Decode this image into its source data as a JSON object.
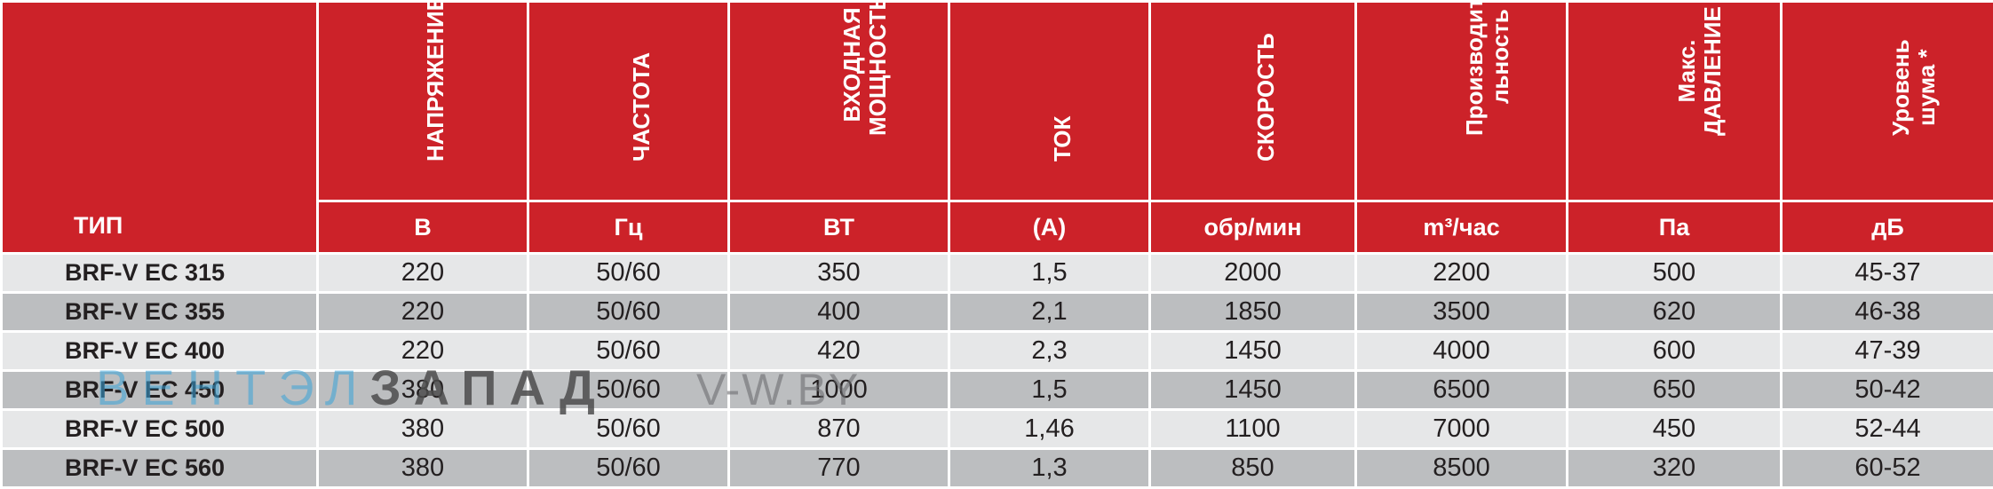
{
  "header": {
    "type_label": "ТИП",
    "columns": [
      {
        "title": "НАПРЯЖЕНИЕ",
        "unit": "В"
      },
      {
        "title": "ЧАСТОТА",
        "unit": "Гц"
      },
      {
        "title": "ВХОДНАЯ\nМОЩНОСТЬ",
        "unit": "ВТ"
      },
      {
        "title": "ТОК",
        "unit": "(А)"
      },
      {
        "title": "СКОРОСТЬ",
        "unit": "обр/мин"
      },
      {
        "title": "Производите-\nльность",
        "unit": "m³/час"
      },
      {
        "title": "Макс.\nДАВЛЕНИЕ",
        "unit": "Па"
      },
      {
        "title": "Уровень\nшума *",
        "unit": "дБ"
      }
    ]
  },
  "rows": [
    [
      "BRF-V EC 315",
      "220",
      "50/60",
      "350",
      "1,5",
      "2000",
      "2200",
      "500",
      "45-37"
    ],
    [
      "BRF-V EC 355",
      "220",
      "50/60",
      "400",
      "2,1",
      "1850",
      "3500",
      "620",
      "46-38"
    ],
    [
      "BRF-V EC 400",
      "220",
      "50/60",
      "420",
      "2,3",
      "1450",
      "4000",
      "600",
      "47-39"
    ],
    [
      "BRF-V EC 450",
      "380",
      "50/60",
      "1000",
      "1,5",
      "1450",
      "6500",
      "650",
      "50-42"
    ],
    [
      "BRF-V EC 500",
      "380",
      "50/60",
      "870",
      "1,46",
      "1100",
      "7000",
      "450",
      "52-44"
    ],
    [
      "BRF-V EC 560",
      "380",
      "50/60",
      "770",
      "1,3",
      "850",
      "8500",
      "320",
      "60-52"
    ]
  ],
  "watermark": {
    "part1": "ВЕНТЭЛ",
    "part2": "ЗАПАД",
    "part3": "V-W.BY"
  },
  "colors": {
    "header_red": "#cc2229",
    "row_light": "#e6e7e8",
    "row_dark": "#bcbec0"
  }
}
